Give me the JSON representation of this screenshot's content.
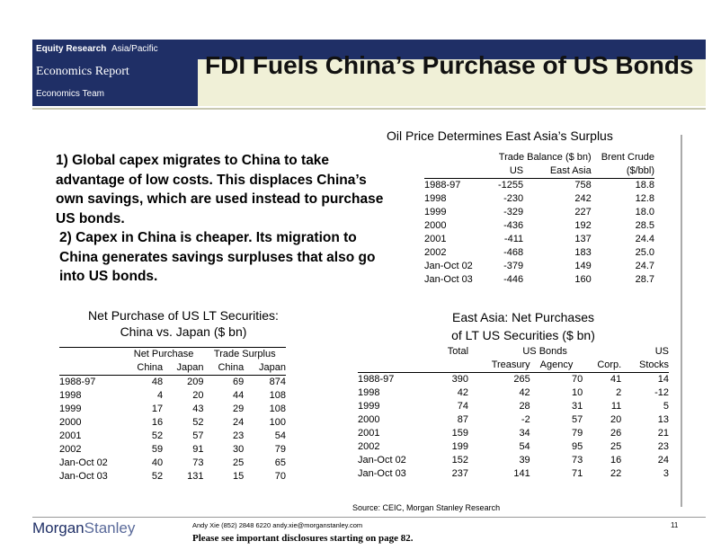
{
  "header": {
    "equity_research": "Equity Research",
    "region": "Asia/Pacific",
    "report_type": "Economics Report",
    "team": "Economics Team",
    "title": "FDI Fuels China’s Purchase of US Bonds"
  },
  "bullets": {
    "p1": "1) Global capex migrates to China to take advantage of low costs.  This displaces China’s own savings, which are used instead to purchase US bonds.",
    "p2": "2) Capex in China is cheaper.  Its migration to China generates savings surpluses that also go into US bonds."
  },
  "oil_table": {
    "title": "Oil Price Determines East Asia’s Surplus",
    "header1": [
      "Trade Balance ($ bn)",
      "Brent Crude"
    ],
    "header2": [
      "US",
      "East Asia",
      "($/bbl)"
    ],
    "rows": [
      [
        "1988-97",
        "-1255",
        "758",
        "18.8"
      ],
      [
        "1998",
        "-230",
        "242",
        "12.8"
      ],
      [
        "1999",
        "-329",
        "227",
        "18.0"
      ],
      [
        "2000",
        "-436",
        "192",
        "28.5"
      ],
      [
        "2001",
        "-411",
        "137",
        "24.4"
      ],
      [
        "2002",
        "-468",
        "183",
        "25.0"
      ],
      [
        "Jan-Oct 02",
        "-379",
        "149",
        "24.7"
      ],
      [
        "Jan-Oct 03",
        "-446",
        "160",
        "28.7"
      ]
    ]
  },
  "net_purchase_table": {
    "title_line1": "Net Purchase of US LT Securities:",
    "title_line2": "China vs. Japan ($ bn)",
    "group1": "Net Purchase",
    "group2": "Trade Surplus",
    "sub": [
      "China",
      "Japan",
      "China",
      "Japan"
    ],
    "rows": [
      [
        "1988-97",
        "48",
        "209",
        "69",
        "874"
      ],
      [
        "1998",
        "4",
        "20",
        "44",
        "108"
      ],
      [
        "1999",
        "17",
        "43",
        "29",
        "108"
      ],
      [
        "2000",
        "16",
        "52",
        "24",
        "100"
      ],
      [
        "2001",
        "52",
        "57",
        "23",
        "54"
      ],
      [
        "2002",
        "59",
        "91",
        "30",
        "79"
      ],
      [
        "Jan-Oct 02",
        "40",
        "73",
        "25",
        "65"
      ],
      [
        "Jan-Oct 03",
        "52",
        "131",
        "15",
        "70"
      ]
    ]
  },
  "east_asia_table": {
    "title_line1": "East Asia: Net Purchases",
    "title_line2": "of LT US Securities ($ bn)",
    "h_total": "Total",
    "h_usbonds": "US Bonds",
    "h_us": "US",
    "h_treasury": "Treasury",
    "h_agency": "Agency",
    "h_corp": "Corp.",
    "h_stocks": "Stocks",
    "rows": [
      [
        "1988-97",
        "390",
        "265",
        "70",
        "41",
        "14"
      ],
      [
        "1998",
        "42",
        "42",
        "10",
        "2",
        "-12"
      ],
      [
        "1999",
        "74",
        "28",
        "31",
        "11",
        "5"
      ],
      [
        "2000",
        "87",
        "-2",
        "57",
        "20",
        "13"
      ],
      [
        "2001",
        "159",
        "34",
        "79",
        "26",
        "21"
      ],
      [
        "2002",
        "199",
        "54",
        "95",
        "25",
        "23"
      ],
      [
        "Jan-Oct 02",
        "152",
        "39",
        "73",
        "16",
        "24"
      ],
      [
        "Jan-Oct 03",
        "237",
        "141",
        "71",
        "22",
        "3"
      ]
    ]
  },
  "footer": {
    "source": "Source: CEIC, Morgan Stanley Research",
    "logo_morgan": "Morgan",
    "logo_stanley": "Stanley",
    "contact": "Andy Xie (852) 2848 6220  andy.xie@morganstanley.com",
    "disclosure": "Please see important disclosures starting on page 82.",
    "page": "11"
  }
}
